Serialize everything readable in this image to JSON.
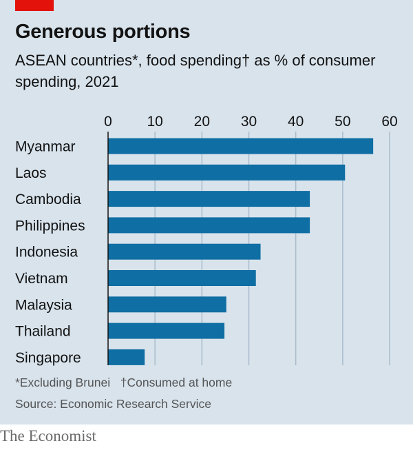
{
  "header": {
    "title": "Generous portions",
    "subtitle": "ASEAN countries*, food spending† as % of consumer spending, 2021"
  },
  "notes": {
    "footnote_1": "*Excluding Brunei",
    "footnote_2": "†Consumed at home",
    "source": "Source: Economic Research Service"
  },
  "brand": "The Economist",
  "colors": {
    "bar": "#0f6ea3",
    "background": "#d8e3ec",
    "accent": "#e3120b"
  },
  "chart_data": {
    "type": "bar",
    "orientation": "horizontal",
    "categories": [
      "Myanmar",
      "Laos",
      "Cambodia",
      "Philippines",
      "Indonesia",
      "Vietnam",
      "Malaysia",
      "Thailand",
      "Singapore"
    ],
    "values": [
      56.5,
      50.5,
      43,
      43,
      32.5,
      31.5,
      25.2,
      24.8,
      7.8
    ],
    "xlim": [
      0,
      60
    ],
    "xticks": [
      0,
      10,
      20,
      30,
      40,
      50,
      60
    ],
    "grid": true,
    "tick_position": "top"
  }
}
